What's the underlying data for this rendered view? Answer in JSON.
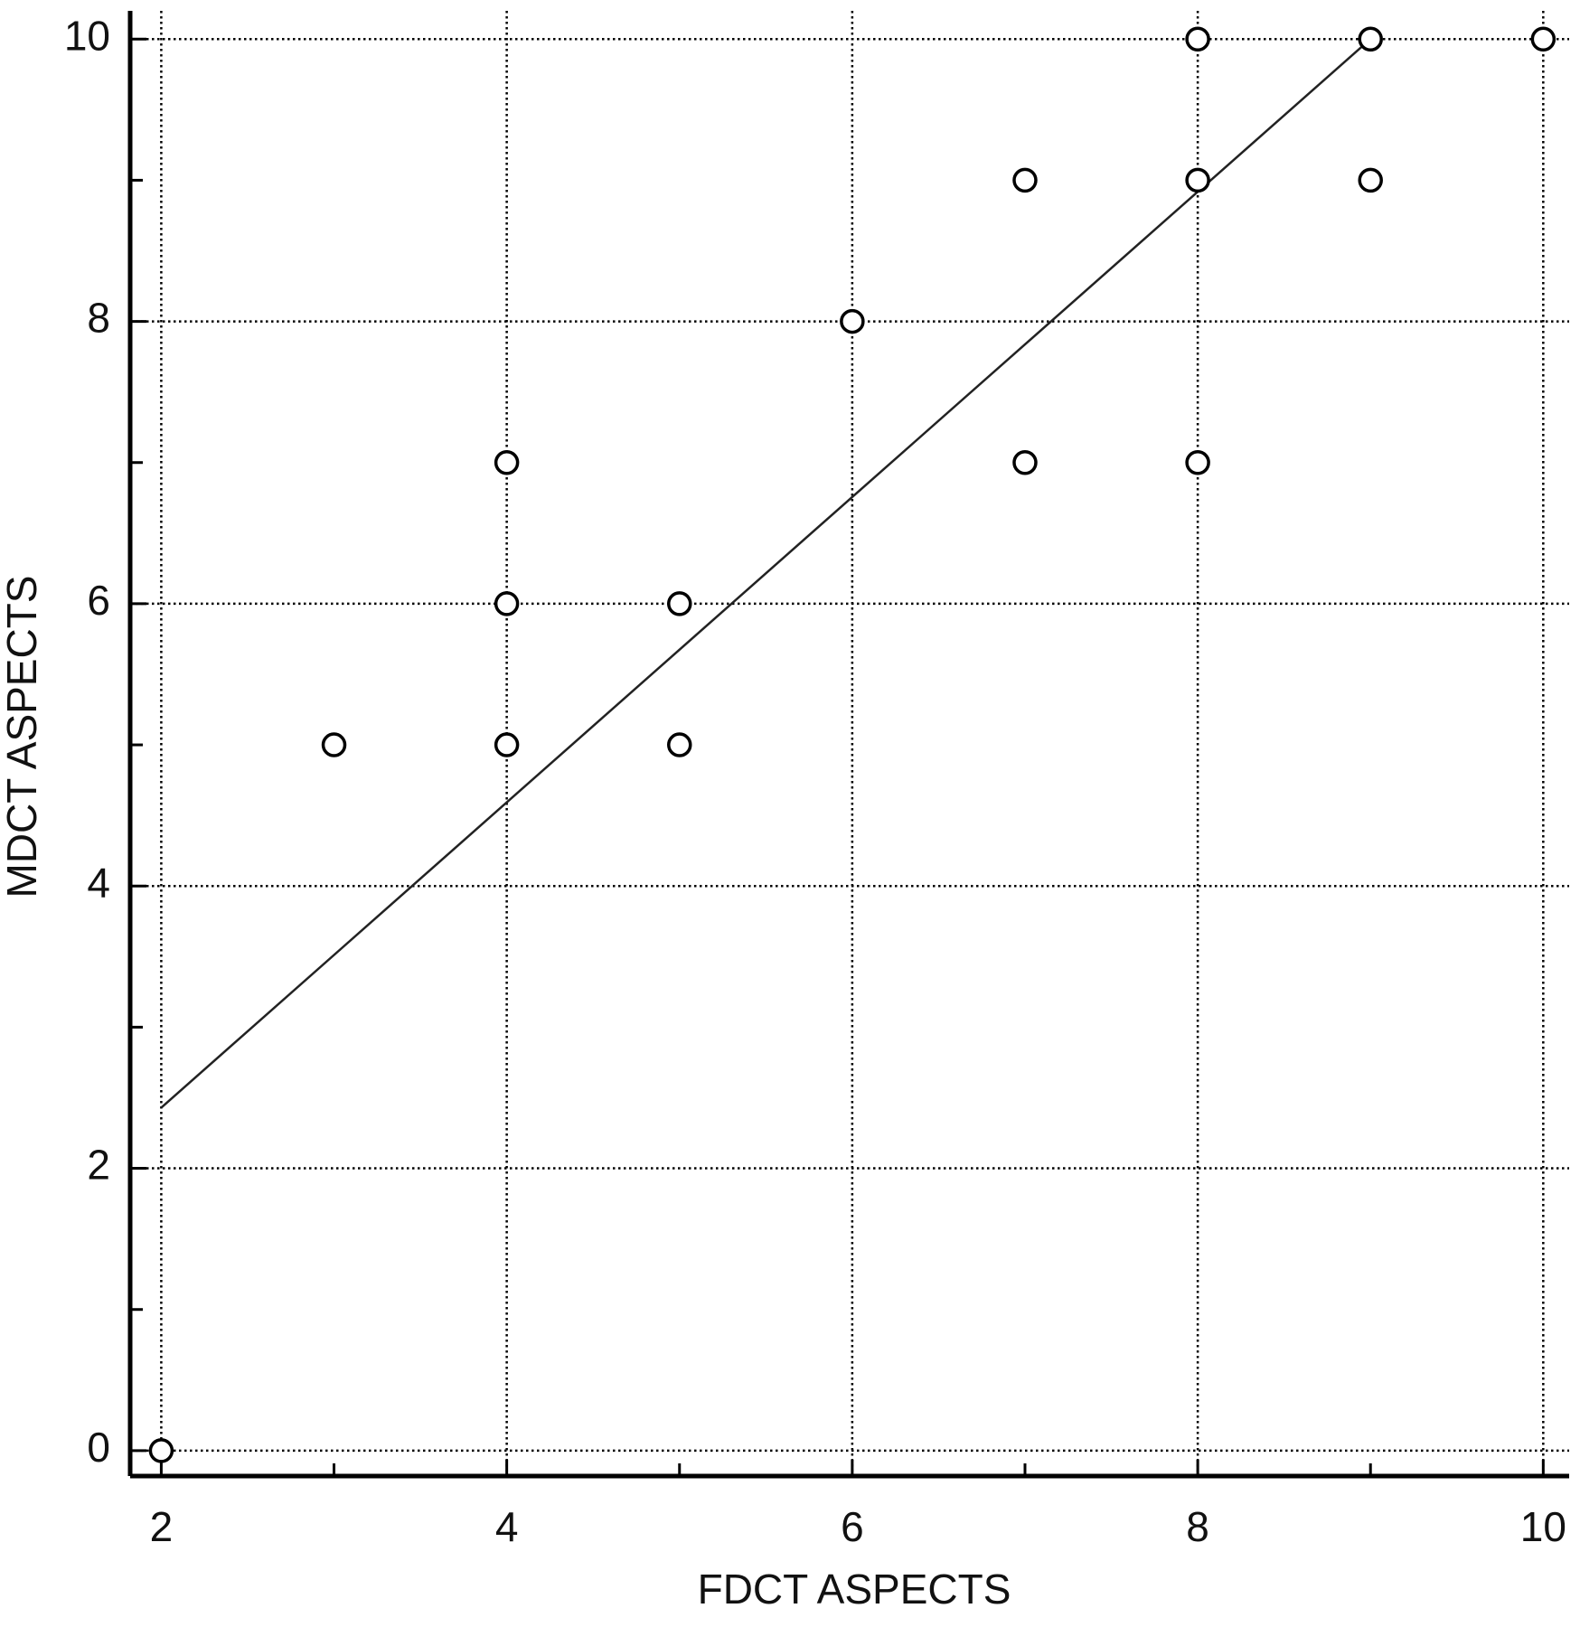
{
  "chart_data": {
    "type": "scatter",
    "x_label": "FDCT ASPECTS",
    "y_label": "MDCT ASPECTS",
    "x": [
      2,
      3,
      4,
      4,
      4,
      5,
      5,
      6,
      7,
      7,
      8,
      8,
      8,
      9,
      9,
      10
    ],
    "values": [
      0,
      5,
      7,
      6,
      5,
      6,
      5,
      8,
      9,
      7,
      10,
      9,
      7,
      10,
      9,
      10
    ],
    "fit_line": {
      "x": [
        2,
        9
      ],
      "values": [
        2.43,
        10
      ]
    },
    "color": "#000000",
    "xlim": [
      1.82,
      10.15
    ],
    "ylim": [
      -0.18,
      10.2
    ],
    "xticks": [
      2,
      4,
      6,
      8,
      10
    ],
    "yticks": [
      0,
      2,
      4,
      6,
      8,
      10
    ],
    "xticks_minor": [
      3,
      5,
      7,
      9
    ],
    "yticks_minor": [
      1,
      3,
      5,
      7,
      9
    ],
    "grid": true
  }
}
